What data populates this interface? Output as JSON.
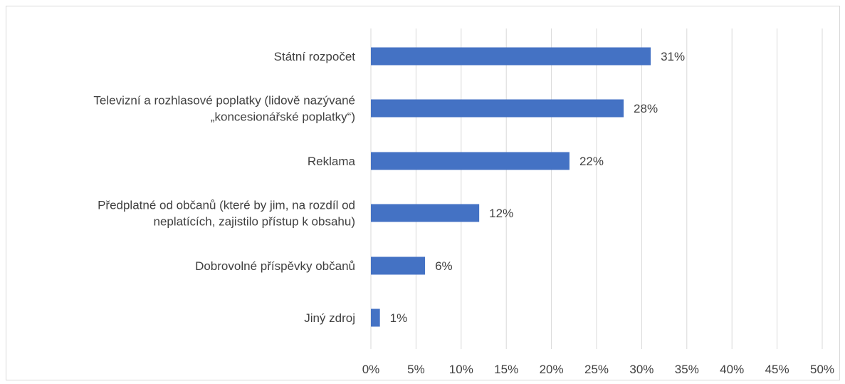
{
  "chart_data": {
    "type": "bar",
    "orientation": "horizontal",
    "categories": [
      [
        "Státní rozpočet"
      ],
      [
        "Televizní a rozhlasové poplatky (lidově nazývané",
        "„koncesionářské poplatky“)"
      ],
      [
        "Reklama"
      ],
      [
        "Předplatné od občanů (které by jim, na rozdíl od",
        "neplatících, zajistilo přístup k obsahu)"
      ],
      [
        "Dobrovolné příspěvky občanů"
      ],
      [
        "Jiný zdroj"
      ]
    ],
    "values": [
      31,
      28,
      22,
      12,
      6,
      1
    ],
    "value_labels": [
      "31%",
      "28%",
      "22%",
      "12%",
      "6%",
      "1%"
    ],
    "x_ticks": [
      "0%",
      "5%",
      "10%",
      "15%",
      "20%",
      "25%",
      "30%",
      "35%",
      "40%",
      "45%",
      "50%"
    ],
    "xlim": [
      0,
      50
    ],
    "bar_color": "#4472c4",
    "grid": true,
    "legend": "none"
  }
}
